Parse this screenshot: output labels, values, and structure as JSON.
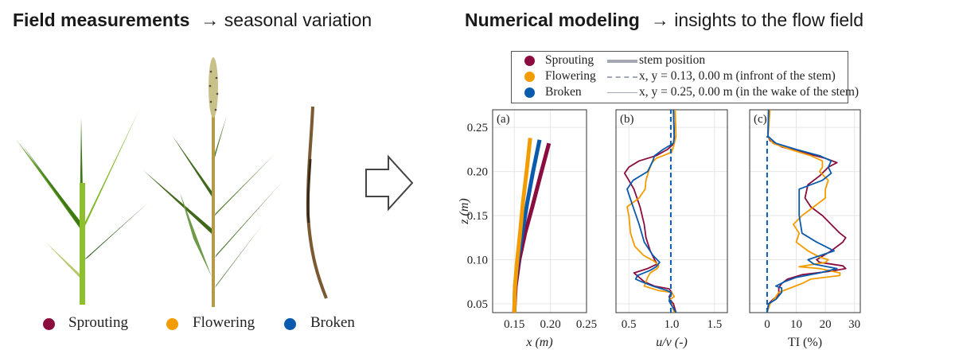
{
  "header": {
    "left_title": "Field measurements",
    "left_subtitle": "→ seasonal variation",
    "right_title": "Numerical modeling",
    "right_subtitle": "→ insights to the flow field"
  },
  "plants": {
    "items": [
      {
        "label": "Sprouting",
        "color": "#8b0d3f"
      },
      {
        "label": "Flowering",
        "color": "#f39c00"
      },
      {
        "label": "Broken",
        "color": "#0a5aad"
      }
    ],
    "arrow_icon": "right-arrow-outline-icon"
  },
  "legend": {
    "stages": [
      {
        "label": "Sprouting",
        "color": "#8b0d3f"
      },
      {
        "label": "Flowering",
        "color": "#f39c00"
      },
      {
        "label": "Broken",
        "color": "#0a5aad"
      }
    ],
    "lines": [
      {
        "style": "thick-solid",
        "label": "stem position"
      },
      {
        "style": "dashed",
        "label": "x, y = 0.13, 0.00 m (infront of the stem)"
      },
      {
        "style": "thin-solid",
        "label": "x, y = 0.25, 0.00 m (in the wake of the stem)"
      }
    ]
  },
  "chart_data": [
    {
      "type": "line",
      "panel": "(a)",
      "xlabel": "x (m)",
      "ylabel": "z (m)",
      "xlim": [
        0.12,
        0.25
      ],
      "ylim": [
        0.04,
        0.27
      ],
      "xticks": [
        "0.15",
        "0.20",
        "0.25"
      ],
      "yticks": [
        "0.05",
        "0.10",
        "0.15",
        "0.20",
        "0.25"
      ],
      "grid": true,
      "series": [
        {
          "name": "Sprouting",
          "color": "#8b0d3f",
          "style": "stem",
          "points": [
            [
              0.15,
              0.04
            ],
            [
              0.152,
              0.07
            ],
            [
              0.157,
              0.1
            ],
            [
              0.165,
              0.13
            ],
            [
              0.175,
              0.16
            ],
            [
              0.186,
              0.195
            ],
            [
              0.198,
              0.232
            ]
          ]
        },
        {
          "name": "Broken",
          "color": "#0a5aad",
          "style": "stem",
          "points": [
            [
              0.15,
              0.04
            ],
            [
              0.151,
              0.07
            ],
            [
              0.155,
              0.1
            ],
            [
              0.161,
              0.13
            ],
            [
              0.168,
              0.165
            ],
            [
              0.176,
              0.2
            ],
            [
              0.185,
              0.236
            ]
          ]
        },
        {
          "name": "Flowering",
          "color": "#f39c00",
          "style": "stem",
          "points": [
            [
              0.15,
              0.04
            ],
            [
              0.151,
              0.07
            ],
            [
              0.154,
              0.1
            ],
            [
              0.158,
              0.13
            ],
            [
              0.162,
              0.165
            ],
            [
              0.167,
              0.2
            ],
            [
              0.172,
              0.238
            ]
          ]
        }
      ]
    },
    {
      "type": "line",
      "panel": "(b)",
      "xlabel": "u/v (-)",
      "xlim": [
        0.35,
        1.65
      ],
      "ylim": [
        0.04,
        0.27
      ],
      "xticks": [
        "0.5",
        "1.0",
        "1.5"
      ],
      "grid": true,
      "series": [
        {
          "name": "Sprouting",
          "color": "#8b0d3f",
          "style": "wake",
          "points": [
            [
              1.02,
              0.27
            ],
            [
              1.03,
              0.24
            ],
            [
              1.03,
              0.232
            ],
            [
              0.95,
              0.225
            ],
            [
              0.82,
              0.218
            ],
            [
              0.62,
              0.212
            ],
            [
              0.5,
              0.205
            ],
            [
              0.45,
              0.198
            ],
            [
              0.5,
              0.19
            ],
            [
              0.56,
              0.18
            ],
            [
              0.63,
              0.16
            ],
            [
              0.68,
              0.14
            ],
            [
              0.7,
              0.125
            ],
            [
              0.75,
              0.11
            ],
            [
              0.8,
              0.1
            ],
            [
              0.83,
              0.095
            ],
            [
              0.72,
              0.09
            ],
            [
              0.56,
              0.085
            ],
            [
              0.62,
              0.08
            ],
            [
              0.68,
              0.075
            ],
            [
              0.8,
              0.07
            ],
            [
              0.97,
              0.067
            ],
            [
              1.0,
              0.063
            ],
            [
              0.97,
              0.058
            ],
            [
              0.98,
              0.055
            ],
            [
              1.02,
              0.05
            ],
            [
              1.05,
              0.04
            ]
          ]
        },
        {
          "name": "Flowering",
          "color": "#f39c00",
          "style": "wake",
          "points": [
            [
              1.04,
              0.27
            ],
            [
              1.05,
              0.24
            ],
            [
              1.02,
              0.228
            ],
            [
              1.0,
              0.222
            ],
            [
              0.9,
              0.218
            ],
            [
              0.82,
              0.215
            ],
            [
              0.77,
              0.21
            ],
            [
              0.73,
              0.2
            ],
            [
              0.7,
              0.19
            ],
            [
              0.69,
              0.18
            ],
            [
              0.62,
              0.17
            ],
            [
              0.48,
              0.16
            ],
            [
              0.5,
              0.15
            ],
            [
              0.52,
              0.13
            ],
            [
              0.57,
              0.115
            ],
            [
              0.67,
              0.105
            ],
            [
              0.8,
              0.098
            ],
            [
              0.85,
              0.093
            ],
            [
              0.83,
              0.09
            ],
            [
              0.75,
              0.085
            ],
            [
              0.72,
              0.08
            ],
            [
              0.7,
              0.075
            ],
            [
              0.68,
              0.07
            ],
            [
              0.85,
              0.065
            ],
            [
              1.0,
              0.063
            ],
            [
              1.03,
              0.058
            ],
            [
              0.98,
              0.055
            ],
            [
              1.0,
              0.05
            ],
            [
              1.03,
              0.04
            ]
          ]
        },
        {
          "name": "Broken",
          "color": "#0a5aad",
          "style": "wake",
          "points": [
            [
              1.02,
              0.27
            ],
            [
              1.03,
              0.24
            ],
            [
              1.02,
              0.232
            ],
            [
              0.9,
              0.225
            ],
            [
              0.8,
              0.218
            ],
            [
              0.78,
              0.212
            ],
            [
              0.72,
              0.2
            ],
            [
              0.55,
              0.19
            ],
            [
              0.48,
              0.18
            ],
            [
              0.55,
              0.16
            ],
            [
              0.62,
              0.14
            ],
            [
              0.68,
              0.12
            ],
            [
              0.78,
              0.105
            ],
            [
              0.86,
              0.097
            ],
            [
              0.82,
              0.092
            ],
            [
              0.75,
              0.088
            ],
            [
              0.6,
              0.082
            ],
            [
              0.58,
              0.078
            ],
            [
              0.65,
              0.075
            ],
            [
              0.78,
              0.07
            ],
            [
              0.95,
              0.065
            ],
            [
              1.0,
              0.062
            ],
            [
              0.98,
              0.058
            ],
            [
              0.97,
              0.053
            ],
            [
              1.0,
              0.048
            ],
            [
              1.05,
              0.04
            ]
          ]
        },
        {
          "name": "front",
          "color": "#0a5aad",
          "style": "front",
          "points": [
            [
              0.99,
              0.04
            ],
            [
              0.99,
              0.27
            ]
          ]
        }
      ]
    },
    {
      "type": "line",
      "panel": "(c)",
      "xlabel": "TI (%)",
      "xlim": [
        -6,
        32
      ],
      "ylim": [
        0.04,
        0.27
      ],
      "xticks": [
        "0",
        "10",
        "20",
        "30"
      ],
      "grid": true,
      "series": [
        {
          "name": "Sprouting",
          "color": "#8b0d3f",
          "style": "wake",
          "points": [
            [
              0.5,
              0.27
            ],
            [
              0.3,
              0.24
            ],
            [
              1,
              0.235
            ],
            [
              5,
              0.228
            ],
            [
              12,
              0.222
            ],
            [
              20,
              0.215
            ],
            [
              24,
              0.21
            ],
            [
              21,
              0.205
            ],
            [
              18,
              0.195
            ],
            [
              14,
              0.185
            ],
            [
              13,
              0.17
            ],
            [
              15,
              0.16
            ],
            [
              19,
              0.15
            ],
            [
              22,
              0.14
            ],
            [
              25,
              0.13
            ],
            [
              27,
              0.125
            ],
            [
              26,
              0.12
            ],
            [
              22,
              0.11
            ],
            [
              17,
              0.1
            ],
            [
              18,
              0.097
            ],
            [
              26,
              0.093
            ],
            [
              27,
              0.09
            ],
            [
              22,
              0.087
            ],
            [
              12,
              0.083
            ],
            [
              7,
              0.078
            ],
            [
              5,
              0.073
            ],
            [
              4,
              0.068
            ],
            [
              4,
              0.06
            ],
            [
              2,
              0.055
            ],
            [
              0.5,
              0.05
            ],
            [
              0,
              0.04
            ]
          ]
        },
        {
          "name": "Flowering",
          "color": "#f39c00",
          "style": "wake",
          "points": [
            [
              1,
              0.27
            ],
            [
              0.3,
              0.24
            ],
            [
              2,
              0.232
            ],
            [
              8,
              0.225
            ],
            [
              15,
              0.218
            ],
            [
              19,
              0.212
            ],
            [
              19,
              0.205
            ],
            [
              18,
              0.2
            ],
            [
              21,
              0.19
            ],
            [
              20,
              0.18
            ],
            [
              20,
              0.17
            ],
            [
              16,
              0.16
            ],
            [
              12,
              0.15
            ],
            [
              9,
              0.14
            ],
            [
              11,
              0.13
            ],
            [
              10,
              0.12
            ],
            [
              14,
              0.11
            ],
            [
              18,
              0.103
            ],
            [
              21,
              0.1
            ],
            [
              20,
              0.097
            ],
            [
              11,
              0.092
            ],
            [
              18,
              0.09
            ],
            [
              25,
              0.085
            ],
            [
              25,
              0.082
            ],
            [
              15,
              0.078
            ],
            [
              12,
              0.073
            ],
            [
              8,
              0.068
            ],
            [
              4,
              0.063
            ],
            [
              3,
              0.058
            ],
            [
              1,
              0.05
            ],
            [
              0,
              0.04
            ]
          ]
        },
        {
          "name": "Broken",
          "color": "#0a5aad",
          "style": "wake",
          "points": [
            [
              0.5,
              0.27
            ],
            [
              0.3,
              0.24
            ],
            [
              3,
              0.232
            ],
            [
              10,
              0.225
            ],
            [
              18,
              0.218
            ],
            [
              22,
              0.212
            ],
            [
              21,
              0.205
            ],
            [
              22,
              0.198
            ],
            [
              19,
              0.19
            ],
            [
              11,
              0.18
            ],
            [
              11,
              0.165
            ],
            [
              11,
              0.15
            ],
            [
              12,
              0.13
            ],
            [
              17,
              0.12
            ],
            [
              23,
              0.11
            ],
            [
              14,
              0.1
            ],
            [
              16,
              0.095
            ],
            [
              24,
              0.09
            ],
            [
              18,
              0.085
            ],
            [
              10,
              0.08
            ],
            [
              6,
              0.075
            ],
            [
              3,
              0.07
            ],
            [
              5,
              0.068
            ],
            [
              5,
              0.063
            ],
            [
              3,
              0.055
            ],
            [
              0.5,
              0.05
            ],
            [
              0,
              0.04
            ]
          ]
        },
        {
          "name": "front",
          "color": "#0a5aad",
          "style": "front",
          "points": [
            [
              0,
              0.04
            ],
            [
              0,
              0.24
            ]
          ]
        }
      ]
    }
  ]
}
